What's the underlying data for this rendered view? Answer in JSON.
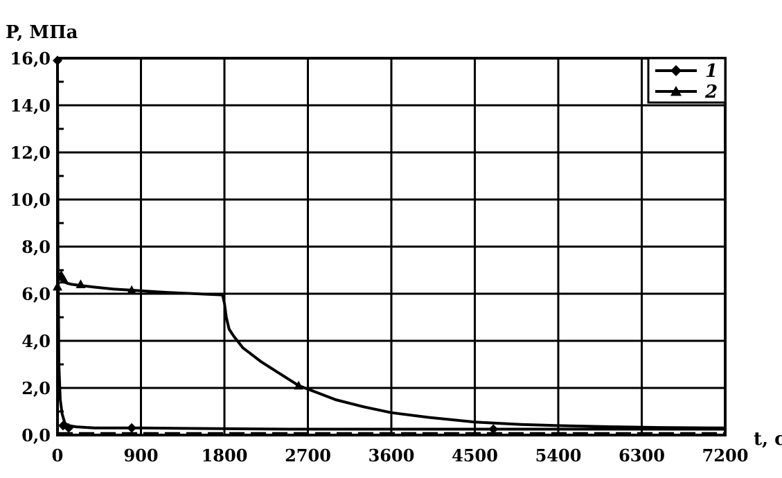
{
  "chart_data": {
    "type": "line",
    "title": "",
    "ylabel": "P, МПа",
    "xlabel": "t, с",
    "xlim": [
      0,
      7200
    ],
    "ylim": [
      0,
      16
    ],
    "x_ticks": [
      0,
      900,
      1800,
      2700,
      3600,
      4500,
      5400,
      6300,
      7200
    ],
    "x_tick_labels": [
      "0",
      "900",
      "1800",
      "2700",
      "3600",
      "4500",
      "5400",
      "6300",
      "7200"
    ],
    "y_ticks": [
      0,
      2,
      4,
      6,
      8,
      10,
      12,
      14,
      16
    ],
    "y_tick_labels": [
      "0,0",
      "2,0",
      "4,0",
      "6,0",
      "8,0",
      "10,0",
      "12,0",
      "14,0",
      "16,0"
    ],
    "grid": true,
    "legend": {
      "placement": "top-right",
      "entries": [
        "1",
        "2"
      ]
    },
    "series": [
      {
        "name": "1",
        "marker": "diamond",
        "x": [
          0,
          5,
          15,
          30,
          50,
          80,
          120,
          200,
          400,
          900,
          1500,
          2500,
          3500,
          4700,
          5400,
          6300,
          7200
        ],
        "y": [
          16.0,
          8.0,
          3.0,
          1.5,
          0.9,
          0.5,
          0.4,
          0.35,
          0.3,
          0.3,
          0.28,
          0.25,
          0.25,
          0.25,
          0.25,
          0.25,
          0.25
        ],
        "marker_x": [
          0,
          60,
          120,
          800,
          4700
        ],
        "marker_y": [
          15.9,
          0.4,
          0.3,
          0.3,
          0.25
        ]
      },
      {
        "name": "2",
        "marker": "triangle",
        "x": [
          0,
          20,
          40,
          70,
          100,
          150,
          250,
          400,
          600,
          800,
          1000,
          1200,
          1500,
          1780,
          1800,
          1820,
          1850,
          1900,
          2000,
          2200,
          2400,
          2600,
          2800,
          3000,
          3300,
          3600,
          4000,
          4500,
          5000,
          5400,
          6000,
          6500,
          7200
        ],
        "y": [
          6.3,
          6.8,
          6.6,
          6.5,
          6.45,
          6.4,
          6.35,
          6.28,
          6.2,
          6.15,
          6.1,
          6.05,
          6.0,
          5.95,
          5.6,
          5.0,
          4.5,
          4.2,
          3.7,
          3.1,
          2.6,
          2.1,
          1.8,
          1.5,
          1.2,
          0.95,
          0.75,
          0.55,
          0.45,
          0.4,
          0.35,
          0.32,
          0.3
        ],
        "marker_x": [
          0,
          40,
          70,
          250,
          800,
          2600
        ],
        "marker_y": [
          6.3,
          6.8,
          6.6,
          6.4,
          6.15,
          2.1
        ]
      }
    ]
  }
}
